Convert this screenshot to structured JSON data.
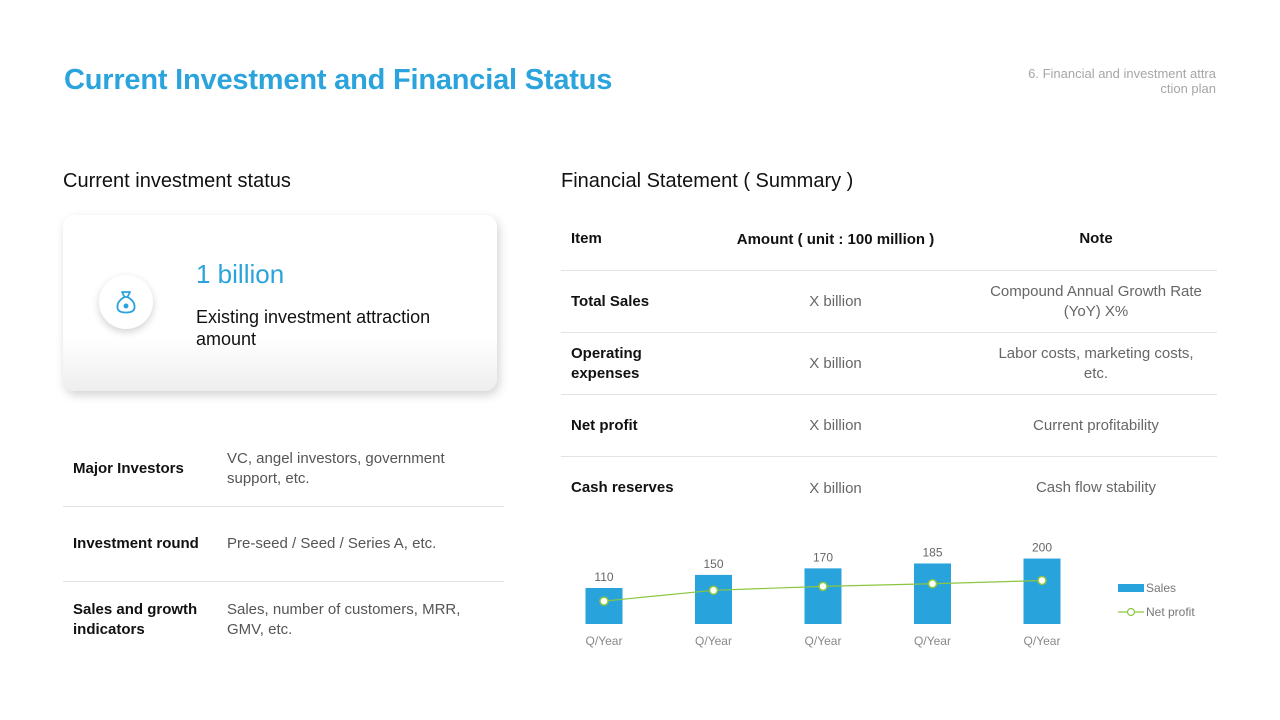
{
  "header": {
    "title": "Current Investment and Financial Status",
    "section": "6. Financial and investment attraction plan"
  },
  "investment": {
    "heading": "Current investment status",
    "card": {
      "icon": "money-bag-icon",
      "value": "1 billion",
      "label": "Existing investment attraction amount"
    },
    "rows": [
      {
        "key": "Major Investors",
        "value": "VC, angel investors, government support, etc."
      },
      {
        "key": "Investment round",
        "value": "Pre-seed / Seed / Series A, etc."
      },
      {
        "key": "Sales and growth indicators",
        "value": "Sales, number of customers, MRR, GMV, etc."
      }
    ]
  },
  "financial": {
    "heading": "Financial Statement ( Summary )",
    "columns": [
      "Item",
      "Amount ( unit : 100 million )",
      "Note"
    ],
    "rows": [
      {
        "item": "Total Sales",
        "amount": "X billion",
        "note": "Compound Annual Growth Rate (YoY) X%"
      },
      {
        "item": "Operating expenses",
        "amount": "X billion",
        "note": "Labor costs, marketing costs, etc."
      },
      {
        "item": "Net profit",
        "amount": "X billion",
        "note": "Current profitability"
      },
      {
        "item": "Cash reserves",
        "amount": "X billion",
        "note": "Cash flow stability"
      }
    ]
  },
  "chart_data": {
    "type": "bar",
    "categories": [
      "Q/Year",
      "Q/Year",
      "Q/Year",
      "Q/Year",
      "Q/Year"
    ],
    "series": [
      {
        "name": "Sales",
        "type": "bar",
        "color": "#29a3dc",
        "values": [
          110,
          150,
          170,
          185,
          200
        ]
      },
      {
        "name": "Net profit",
        "type": "line",
        "color": "#8cc63f",
        "values": [
          70,
          103,
          115,
          123,
          133
        ]
      }
    ],
    "data_labels": [
      "110",
      "150",
      "170",
      "185",
      "200"
    ],
    "ylim": [
      0,
      220
    ],
    "legend": "right",
    "title": "",
    "xlabel": "",
    "ylabel": ""
  }
}
